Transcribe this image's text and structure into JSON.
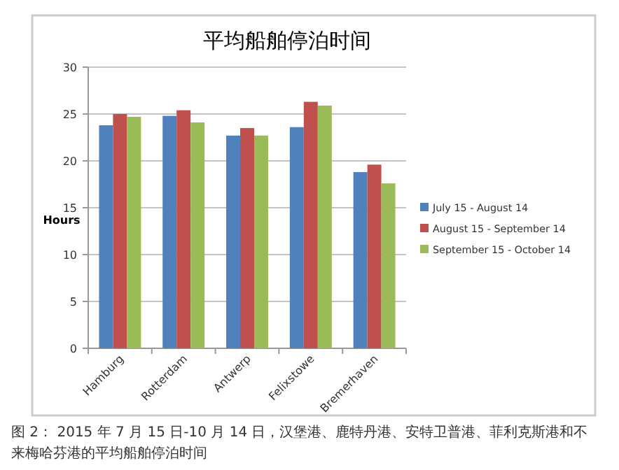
{
  "chart_data": {
    "type": "bar",
    "title": "平均船舶停泊时间",
    "ylabel": "Hours",
    "categories": [
      "Hamburg",
      "Rotterdam",
      "Antwerp",
      "Felixstowe",
      "Bremerhaven"
    ],
    "series": [
      {
        "name": "July 15 - August 14",
        "color": "#4f81bd",
        "values": [
          23.8,
          24.8,
          22.7,
          23.6,
          18.8
        ]
      },
      {
        "name": "August 15 - September 14",
        "color": "#c0504d",
        "values": [
          25.0,
          25.4,
          23.5,
          26.3,
          19.6
        ]
      },
      {
        "name": "September 15 - October 14",
        "color": "#9bbb59",
        "values": [
          24.7,
          24.1,
          22.7,
          25.9,
          17.6
        ]
      }
    ],
    "ylim": [
      0,
      30
    ],
    "yticks": [
      0,
      5,
      10,
      15,
      20,
      25,
      30
    ],
    "grid": "y",
    "legend": "right",
    "annotations": [
      "图 2： 2015 年 7 月 15 日-10 月 14 日，汉堡港、鹿特丹港、安特卫普港、菲利克斯港和不来梅哈芬港的平均船舶停泊时间"
    ]
  }
}
